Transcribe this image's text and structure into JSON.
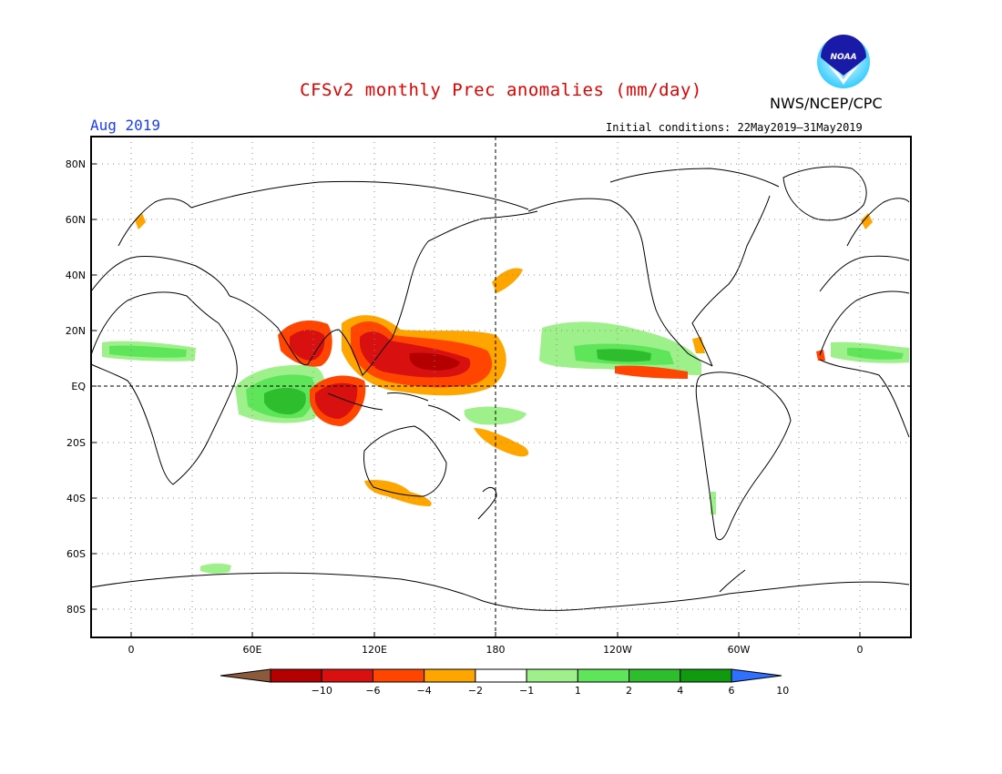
{
  "header": {
    "title": "CFSv2 monthly Prec anomalies (mm/day)",
    "month": "Aug 2019",
    "agency": "NWS/NCEP/CPC",
    "initial_conditions": "Initial conditions: 22May2019–31May2019",
    "logo_text": "NOAA"
  },
  "axes": {
    "lat_labels": [
      "80N",
      "60N",
      "40N",
      "20N",
      "EQ",
      "20S",
      "40S",
      "60S",
      "80S"
    ],
    "lon_labels": [
      "0",
      "60E",
      "120E",
      "180",
      "120W",
      "60W",
      "0"
    ]
  },
  "colorbar": {
    "labels": [
      "−10",
      "−6",
      "−4",
      "−2",
      "−1",
      "1",
      "2",
      "4",
      "6",
      "10"
    ],
    "colors": [
      "#8b5a3c",
      "#b40000",
      "#d81010",
      "#ff4500",
      "#ffa500",
      "#ffffff",
      "#9ef08a",
      "#5ee55a",
      "#2dbd2d",
      "#109a10",
      "#3070ff"
    ]
  },
  "colors": {
    "positive_light": "#9ef08a",
    "positive_medium": "#5ee55a",
    "positive_strong": "#2dbd2d",
    "positive_max": "#109a10",
    "negative_light": "#ffa500",
    "negative_medium": "#ff4500",
    "negative_strong": "#d81010",
    "negative_max": "#b40000"
  }
}
